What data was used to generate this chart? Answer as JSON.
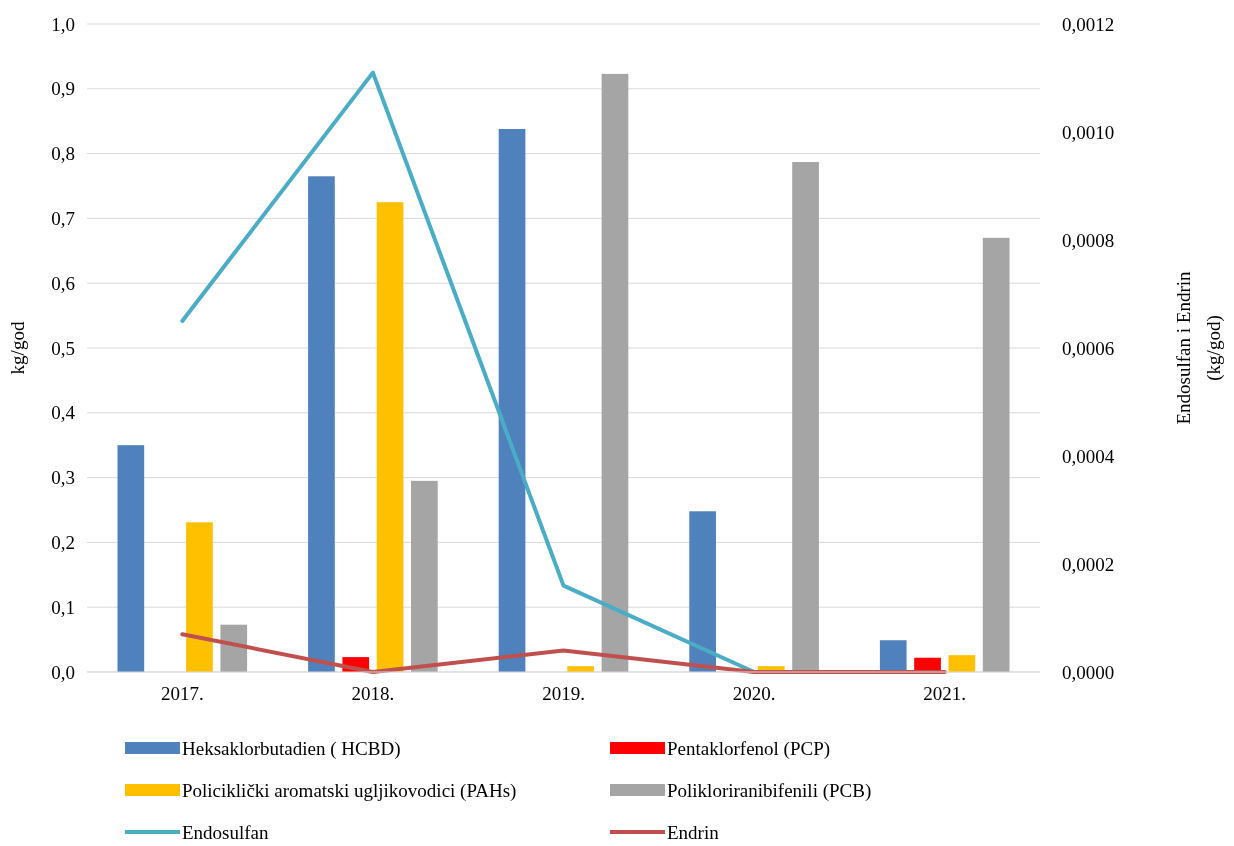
{
  "chart_data": {
    "type": "bar",
    "categories": [
      "2017.",
      "2018.",
      "2019.",
      "2020.",
      "2021."
    ],
    "ylabel": "kg/god",
    "y2label": "Endosulfan i Endrin (kg/god)",
    "ylim": [
      0,
      1
    ],
    "yticks": [
      {
        "value": 0,
        "label": "0,0"
      },
      {
        "value": 0.1,
        "label": "0,1"
      },
      {
        "value": 0.2,
        "label": "0,2"
      },
      {
        "value": 0.3,
        "label": "0,3"
      },
      {
        "value": 0.4,
        "label": "0,4"
      },
      {
        "value": 0.5,
        "label": "0,5"
      },
      {
        "value": 0.6,
        "label": "0,6"
      },
      {
        "value": 0.7,
        "label": "0,7"
      },
      {
        "value": 0.8,
        "label": "0,8"
      },
      {
        "value": 0.9,
        "label": "0,9"
      },
      {
        "value": 1,
        "label": "1,0"
      }
    ],
    "y2lim": [
      0,
      0.0012
    ],
    "y2ticks": [
      {
        "value": 0,
        "label": "0,0000"
      },
      {
        "value": 0.0002,
        "label": "0,0002"
      },
      {
        "value": 0.0004,
        "label": "0,0004"
      },
      {
        "value": 0.0006,
        "label": "0,0006"
      },
      {
        "value": 0.0008,
        "label": "0,0008"
      },
      {
        "value": 0.001,
        "label": "0,0010"
      },
      {
        "value": 0.0012,
        "label": "0,0012"
      }
    ],
    "grid": "y",
    "legend": "bottom",
    "series": [
      {
        "name": "Heksaklorbutadien ( HCBD)",
        "color": "#4f81bd",
        "values": [
          0.35,
          0.765,
          0.838,
          0.248,
          0.049
        ]
      },
      {
        "name": "Pentaklorfenol (PCP)",
        "color": "#ff0000",
        "values": [
          0,
          0.023,
          0,
          0,
          0.022
        ]
      },
      {
        "name": "Policiklički aromatski ugljikovodici (PAHs)",
        "color": "#ffc000",
        "values": [
          0.231,
          0.725,
          0.009,
          0.009,
          0.026
        ]
      },
      {
        "name": "Polikloriranibifenili (PCB)",
        "color": "#a5a5a5",
        "values": [
          0.073,
          0.295,
          0.923,
          0.787,
          0.67
        ]
      },
      {
        "name": "Endosulfan",
        "type": "line",
        "axis": "y2",
        "color": "#4bacc6",
        "values": [
          0.00065,
          0.00111,
          0.00016,
          0,
          null
        ]
      },
      {
        "name": "Endrin",
        "type": "line",
        "axis": "y2",
        "color": "#c0504d",
        "values": [
          7e-05,
          0,
          4e-05,
          0,
          0
        ]
      }
    ]
  }
}
